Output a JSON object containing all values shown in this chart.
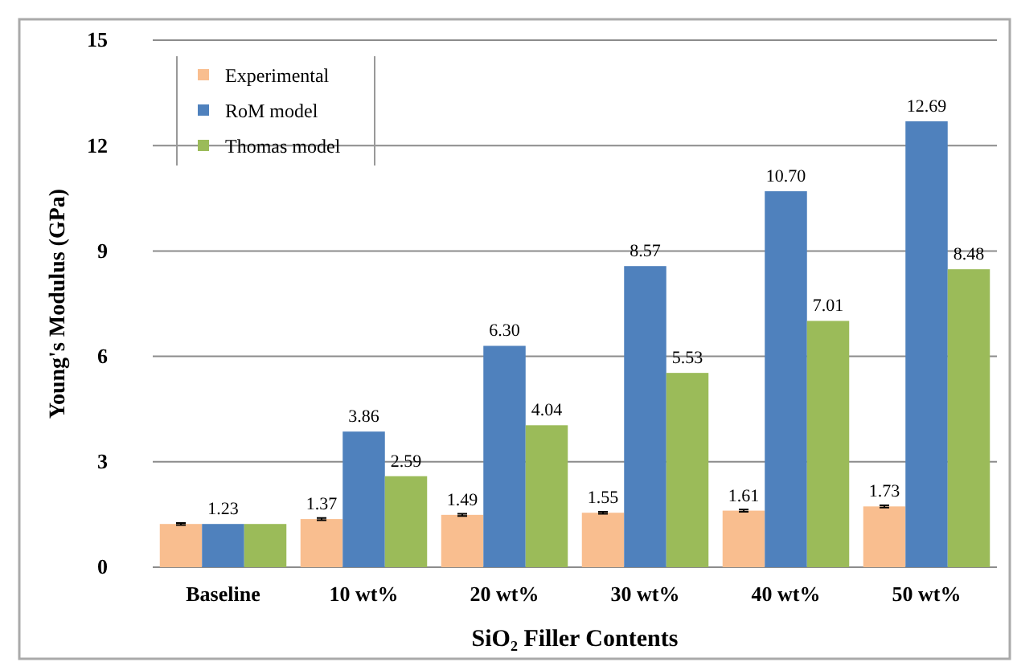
{
  "chart_data": {
    "type": "bar",
    "xlabel": "SiO₂ Filler Contents",
    "ylabel": "Young's Modulus (GPa)",
    "categories": [
      "Baseline",
      "10 wt%",
      "20 wt%",
      "30 wt%",
      "40 wt%",
      "50 wt%"
    ],
    "series": [
      {
        "name": "Experimental",
        "color": "#f9be8f",
        "values": [
          1.23,
          1.37,
          1.49,
          1.55,
          1.61,
          1.73
        ],
        "errors": [
          0.03,
          0.03,
          0.03,
          0.03,
          0.03,
          0.03
        ],
        "value_labels": [
          null,
          "1.37",
          "1.49",
          "1.55",
          "1.61",
          "1.73"
        ]
      },
      {
        "name": "RoM model",
        "color": "#4f81bd",
        "values": [
          1.23,
          3.86,
          6.3,
          8.57,
          10.7,
          12.69
        ],
        "value_labels": [
          "1.23",
          "3.86",
          "6.30",
          "8.57",
          "10.70",
          "12.69"
        ]
      },
      {
        "name": "Thomas model",
        "color": "#9bbb59",
        "values": [
          1.23,
          2.59,
          4.04,
          5.53,
          7.01,
          8.48
        ],
        "value_labels": [
          null,
          "2.59",
          "4.04",
          "5.53",
          "7.01",
          "8.48"
        ]
      }
    ],
    "ylim": [
      0,
      15
    ],
    "yticks": [
      0,
      3,
      6,
      9,
      12,
      15
    ],
    "grid": "y",
    "legend": "top left"
  }
}
